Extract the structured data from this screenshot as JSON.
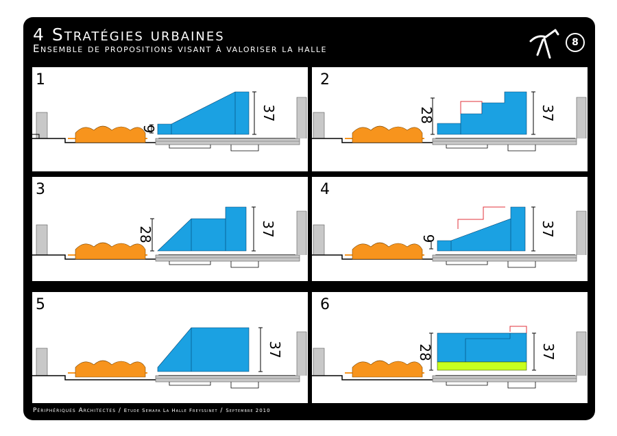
{
  "header": {
    "title": "4 Stratégies urbaines",
    "subtitle": "Ensemble de propositions visant à valoriser la halle",
    "page_number": "8",
    "logo_icon": "pliers-icon"
  },
  "colors": {
    "board": "#000000",
    "panel": "#ffffff",
    "halle": "#f7941d",
    "proposal": "#1ba1e2",
    "green_band": "#c8ff1e",
    "ghost_outline": "#e0303a",
    "building": "#c8c8c8",
    "ground": "#000000"
  },
  "panels": [
    {
      "number": "1",
      "dims": [
        "9",
        "37"
      ]
    },
    {
      "number": "2",
      "dims": [
        "28",
        "37"
      ]
    },
    {
      "number": "3",
      "dims": [
        "28",
        "37"
      ]
    },
    {
      "number": "4",
      "dims": [
        "9",
        "37"
      ]
    },
    {
      "number": "5",
      "dims": [
        "37"
      ]
    },
    {
      "number": "6",
      "dims": [
        "28",
        "37"
      ]
    }
  ],
  "footer": {
    "firm": "Périphériques Architectes",
    "sep": "/",
    "study": "Etude Semapa La Halle Freyssinet",
    "date": "Septembre 2010"
  }
}
